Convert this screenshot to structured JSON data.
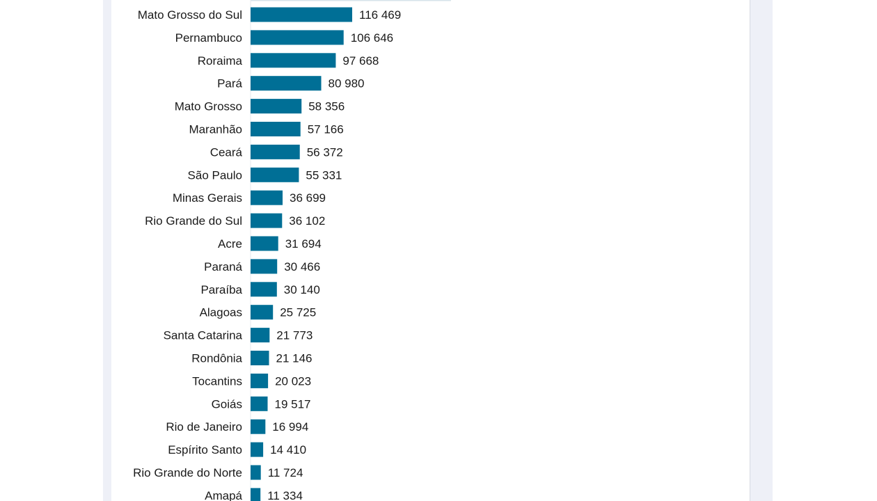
{
  "chart_data": {
    "type": "bar",
    "orientation": "horizontal",
    "categories": [
      "Mato Grosso do Sul",
      "Pernambuco",
      "Roraima",
      "Pará",
      "Mato Grosso",
      "Maranhão",
      "Ceará",
      "São Paulo",
      "Minas Gerais",
      "Rio Grande do Sul",
      "Acre",
      "Paraná",
      "Paraíba",
      "Alagoas",
      "Santa Catarina",
      "Rondônia",
      "Tocantins",
      "Goiás",
      "Rio de Janeiro",
      "Espírito Santo",
      "Rio Grande do Norte",
      "Amapá"
    ],
    "values": [
      116469,
      106646,
      97668,
      80980,
      58356,
      57166,
      56372,
      55331,
      36699,
      36102,
      31694,
      30466,
      30140,
      25725,
      21773,
      21146,
      20023,
      19517,
      16994,
      14410,
      11724,
      11334
    ],
    "value_labels": [
      "116 469",
      "106 646",
      "97 668",
      "80 980",
      "58 356",
      "57 166",
      "56 372",
      "55 331",
      "36 699",
      "36 102",
      "31 694",
      "30 466",
      "30 140",
      "25 725",
      "21 773",
      "21 146",
      "20 023",
      "19 517",
      "16 994",
      "14 410",
      "11 724",
      "11 334"
    ],
    "title": "",
    "xlabel": "",
    "ylabel": "",
    "grid": false,
    "legend": "none"
  },
  "colors": {
    "bar": "#006f96",
    "text": "#1a1a1a",
    "axis": "#e6e8ee",
    "top_strip": "#d7e3ea",
    "gutter": "#eef0f7"
  }
}
